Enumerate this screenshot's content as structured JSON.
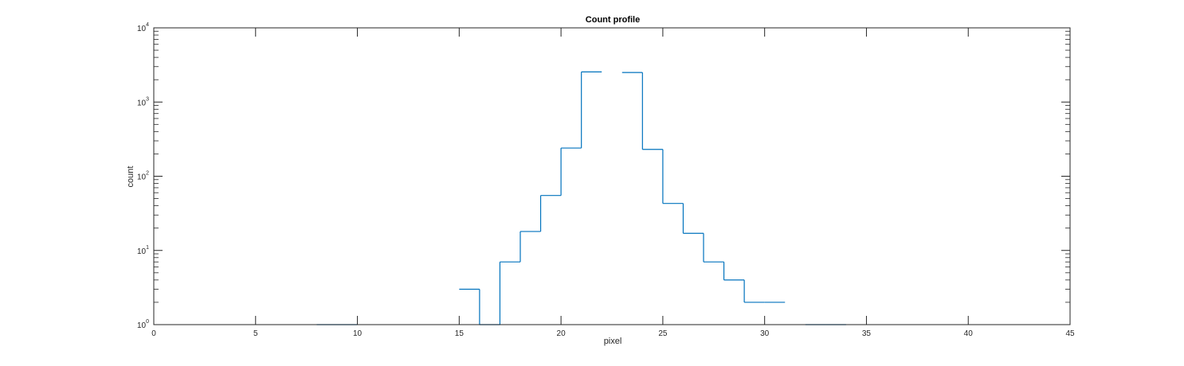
{
  "chart_data": {
    "type": "line",
    "style": "stairs",
    "title": "Count profile",
    "xlabel": "pixel",
    "ylabel": "count",
    "xlim": [
      0,
      45
    ],
    "ylim": [
      1,
      10000
    ],
    "yscale": "log",
    "grid": false,
    "legend": "none",
    "line_color": "#0072BD",
    "xticks": [
      "0",
      "5",
      "10",
      "15",
      "20",
      "25",
      "30",
      "35",
      "40",
      "45"
    ],
    "yticks": [
      {
        "base": "10",
        "exp": "0"
      },
      {
        "base": "10",
        "exp": "1"
      },
      {
        "base": "10",
        "exp": "2"
      },
      {
        "base": "10",
        "exp": "3"
      },
      {
        "base": "10",
        "exp": "4"
      }
    ],
    "series": [
      {
        "x": [
          8,
          9,
          15,
          16,
          17,
          18,
          19,
          20,
          21,
          22,
          23,
          24,
          25,
          26,
          27,
          28,
          29,
          30,
          32,
          33
        ],
        "values": [
          1,
          1,
          3,
          1,
          7,
          18,
          55,
          240,
          2550,
          null,
          2500,
          230,
          43,
          17,
          7,
          4,
          2,
          2,
          1,
          1
        ]
      }
    ]
  }
}
